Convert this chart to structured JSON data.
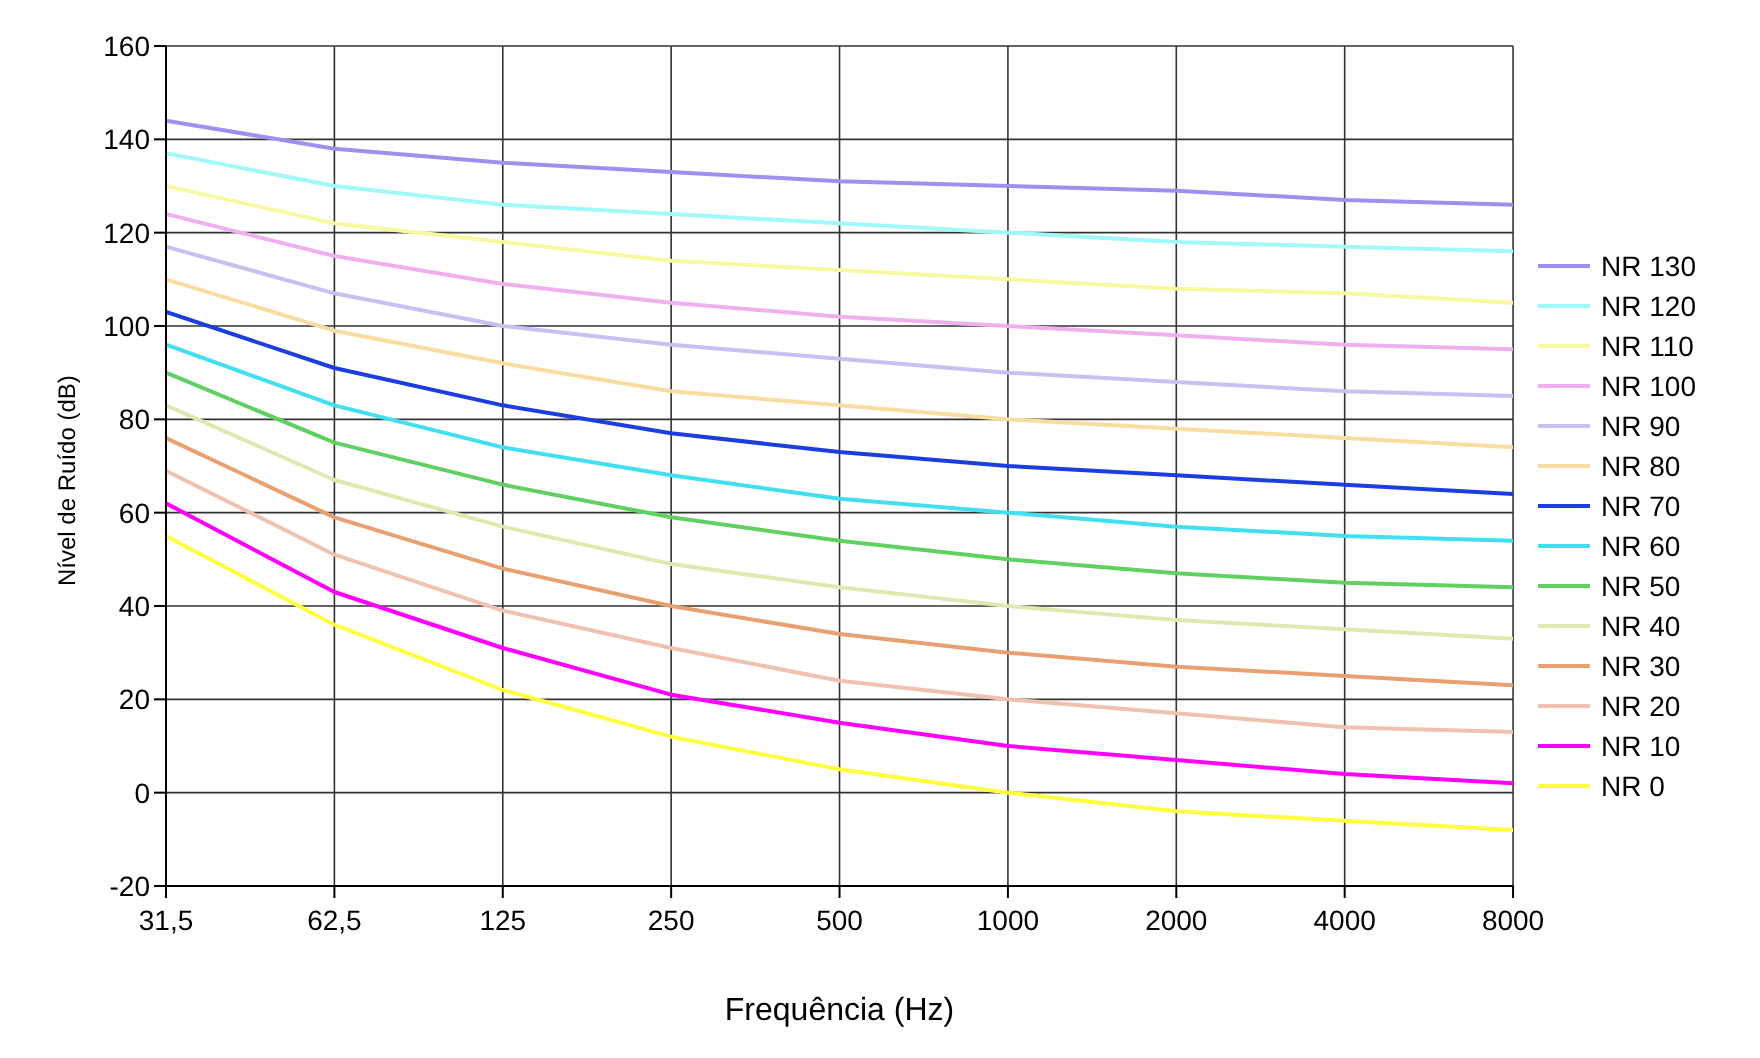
{
  "chart_data": {
    "type": "line",
    "xlabel": "Frequência (Hz)",
    "ylabel": "Nível de Ruído (dB)",
    "categories": [
      "31,5",
      "62,5",
      "125",
      "250",
      "500",
      "1000",
      "2000",
      "4000",
      "8000"
    ],
    "ylim": [
      -20,
      160
    ],
    "yticks": [
      -20,
      0,
      20,
      40,
      60,
      80,
      100,
      120,
      140,
      160
    ],
    "grid": true,
    "legend": "right",
    "series": [
      {
        "name": "NR 130",
        "color": "#9f8fef",
        "values": [
          144,
          138,
          135,
          133,
          131,
          130,
          129,
          127,
          126
        ]
      },
      {
        "name": "NR 120",
        "color": "#a0f8f8",
        "values": [
          137,
          130,
          126,
          124,
          122,
          120,
          118,
          117,
          116
        ]
      },
      {
        "name": "NR 110",
        "color": "#f8f8a0",
        "values": [
          130,
          122,
          118,
          114,
          112,
          110,
          108,
          107,
          105
        ]
      },
      {
        "name": "NR 100",
        "color": "#f0b0f0",
        "values": [
          124,
          115,
          109,
          105,
          102,
          100,
          98,
          96,
          95
        ]
      },
      {
        "name": "NR 90",
        "color": "#c8c0f0",
        "values": [
          117,
          107,
          100,
          96,
          93,
          90,
          88,
          86,
          85
        ]
      },
      {
        "name": "NR 80",
        "color": "#f8dca0",
        "values": [
          110,
          99,
          92,
          86,
          83,
          80,
          78,
          76,
          74
        ]
      },
      {
        "name": "NR 70",
        "color": "#1a3ee0",
        "values": [
          103,
          91,
          83,
          77,
          73,
          70,
          68,
          66,
          64
        ]
      },
      {
        "name": "NR 60",
        "color": "#40e0f0",
        "values": [
          96,
          83,
          74,
          68,
          63,
          60,
          57,
          55,
          54
        ]
      },
      {
        "name": "NR 50",
        "color": "#60d060",
        "values": [
          90,
          75,
          66,
          59,
          54,
          50,
          47,
          45,
          44
        ]
      },
      {
        "name": "NR 40",
        "color": "#e0e8b0",
        "values": [
          83,
          67,
          57,
          49,
          44,
          40,
          37,
          35,
          33
        ]
      },
      {
        "name": "NR 30",
        "color": "#e8a070",
        "values": [
          76,
          59,
          48,
          40,
          34,
          30,
          27,
          25,
          23
        ]
      },
      {
        "name": "NR 20",
        "color": "#f0c0b0",
        "values": [
          69,
          51,
          39,
          31,
          24,
          20,
          17,
          14,
          13
        ]
      },
      {
        "name": "NR 10",
        "color": "#ff00ff",
        "values": [
          62,
          43,
          31,
          21,
          15,
          10,
          7,
          4,
          2
        ]
      },
      {
        "name": "NR 0",
        "color": "#ffff40",
        "values": [
          55,
          36,
          22,
          12,
          5,
          0,
          -4,
          -6,
          -8
        ]
      }
    ]
  }
}
